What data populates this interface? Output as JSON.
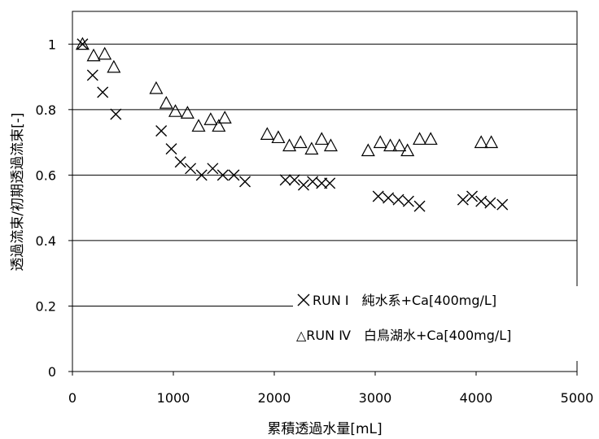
{
  "chart_data": {
    "type": "scatter",
    "xlabel": "累積透過水量[mL]",
    "ylabel": "透過流束/初期透過流束[-]",
    "xlim": [
      0,
      5000
    ],
    "ylim": [
      0,
      1.1
    ],
    "x_ticks": [
      "0",
      "1000",
      "2000",
      "3000",
      "4000",
      "5000"
    ],
    "y_ticks": [
      "0",
      "0.2",
      "0.4",
      "0.6",
      "0.8",
      "1"
    ],
    "grid": "horizontal",
    "legend_position": "bottom-right",
    "series": [
      {
        "name": "RUN Ⅰ　純水系+Ca[400mg/L]",
        "marker": "x",
        "points": [
          [
            100,
            1.0
          ],
          [
            200,
            0.905
          ],
          [
            300,
            0.853
          ],
          [
            430,
            0.786
          ],
          [
            880,
            0.735
          ],
          [
            980,
            0.68
          ],
          [
            1070,
            0.64
          ],
          [
            1170,
            0.62
          ],
          [
            1280,
            0.6
          ],
          [
            1390,
            0.62
          ],
          [
            1490,
            0.6
          ],
          [
            1600,
            0.6
          ],
          [
            1710,
            0.58
          ],
          [
            2110,
            0.585
          ],
          [
            2200,
            0.585
          ],
          [
            2290,
            0.57
          ],
          [
            2380,
            0.58
          ],
          [
            2470,
            0.575
          ],
          [
            2550,
            0.575
          ],
          [
            3030,
            0.535
          ],
          [
            3130,
            0.53
          ],
          [
            3230,
            0.525
          ],
          [
            3330,
            0.52
          ],
          [
            3440,
            0.505
          ],
          [
            3870,
            0.525
          ],
          [
            3960,
            0.535
          ],
          [
            4050,
            0.52
          ],
          [
            4140,
            0.515
          ],
          [
            4260,
            0.51
          ]
        ]
      },
      {
        "name": "△RUN Ⅳ　白鳥湖水+Ca[400mg/L]",
        "marker": "triangle",
        "points": [
          [
            100,
            1.0
          ],
          [
            210,
            0.965
          ],
          [
            320,
            0.97
          ],
          [
            410,
            0.93
          ],
          [
            830,
            0.865
          ],
          [
            930,
            0.82
          ],
          [
            1020,
            0.795
          ],
          [
            1140,
            0.79
          ],
          [
            1250,
            0.75
          ],
          [
            1370,
            0.77
          ],
          [
            1450,
            0.75
          ],
          [
            1510,
            0.775
          ],
          [
            1930,
            0.725
          ],
          [
            2040,
            0.715
          ],
          [
            2150,
            0.69
          ],
          [
            2260,
            0.7
          ],
          [
            2370,
            0.68
          ],
          [
            2470,
            0.71
          ],
          [
            2560,
            0.69
          ],
          [
            2930,
            0.675
          ],
          [
            3050,
            0.7
          ],
          [
            3150,
            0.69
          ],
          [
            3240,
            0.69
          ],
          [
            3320,
            0.675
          ],
          [
            3440,
            0.71
          ],
          [
            3550,
            0.71
          ],
          [
            4050,
            0.7
          ],
          [
            4150,
            0.7
          ]
        ]
      }
    ]
  }
}
